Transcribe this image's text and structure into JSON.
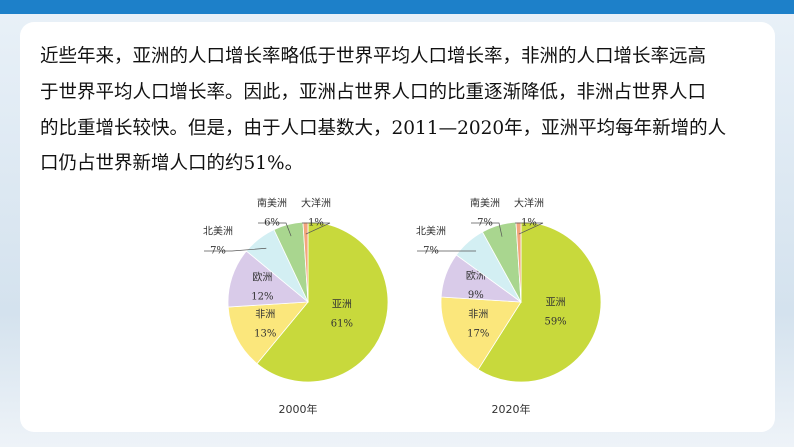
{
  "paragraph": {
    "lines": [
      "近些年来，亚洲的人口增长率略低于世界平均人口增长率，非洲的人口增长率远高",
      "于世界平均人口增长率。因此，亚洲占世界人口的比重逐渐降低，非洲占世界人口",
      "的比重增长较快。但是，由于人口基数大，2011—2020年，亚洲平均每年新增的人",
      "口仍占世界新增人口的约51%。"
    ]
  },
  "chart_data": [
    {
      "type": "pie",
      "title": "2000年",
      "categories": [
        "亚洲",
        "非洲",
        "欧洲",
        "北美洲",
        "南美洲",
        "大洋洲"
      ],
      "values": [
        61,
        13,
        12,
        7,
        6,
        1
      ],
      "value_labels": [
        "61%",
        "13%",
        "12%",
        "7%",
        "6%",
        "1%"
      ],
      "colors": [
        "#c8d93c",
        "#fbe77c",
        "#d9cbe9",
        "#d3eff3",
        "#a9d68f",
        "#f3a57c"
      ]
    },
    {
      "type": "pie",
      "title": "2020年",
      "categories": [
        "亚洲",
        "非洲",
        "欧洲",
        "北美洲",
        "南美洲",
        "大洋洲"
      ],
      "values": [
        59,
        17,
        9,
        7,
        7,
        1
      ],
      "value_labels": [
        "59%",
        "17%",
        "9%",
        "7%",
        "7%",
        "1%"
      ],
      "colors": [
        "#c8d93c",
        "#fbe77c",
        "#d9cbe9",
        "#d3eff3",
        "#a9d68f",
        "#f3a57c"
      ]
    }
  ]
}
